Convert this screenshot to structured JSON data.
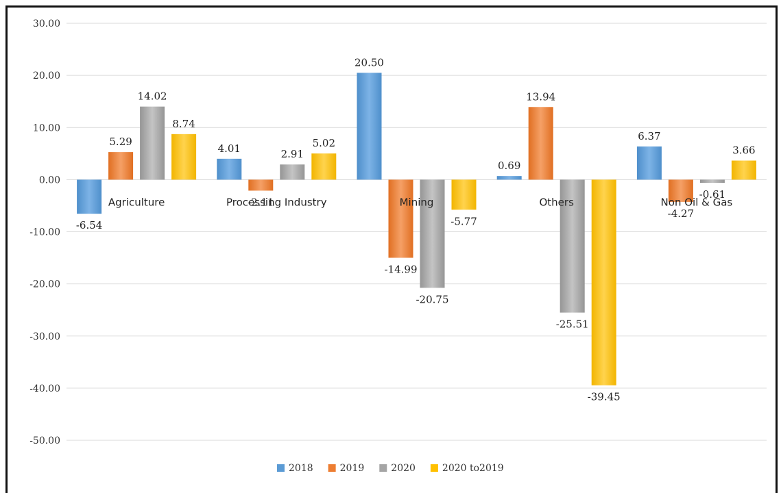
{
  "chart_data": {
    "type": "bar",
    "categories": [
      "Agriculture",
      "Processing Industry",
      "Mining",
      "Others",
      "Non Oil & Gas"
    ],
    "series": [
      {
        "name": "2018",
        "color": "#5B9BD5",
        "values": [
          -6.54,
          4.01,
          20.5,
          0.69,
          6.37
        ],
        "labels": [
          "-6.54",
          "4.01",
          "20.50",
          "0.69",
          "6.37"
        ]
      },
      {
        "name": "2019",
        "color": "#ED7D31",
        "values": [
          5.29,
          -2.11,
          -14.99,
          13.94,
          -4.27
        ],
        "labels": [
          "5.29",
          "-2.11",
          "-14.99",
          "13.94",
          "-4.27"
        ]
      },
      {
        "name": "2020",
        "color": "#A5A5A5",
        "values": [
          14.02,
          2.91,
          -20.75,
          -25.51,
          -0.61
        ],
        "labels": [
          "14.02",
          "2.91",
          "-20.75",
          "-25.51",
          "-0.61"
        ]
      },
      {
        "name": "2020 to2019",
        "color": "#FFC000",
        "values": [
          8.74,
          5.02,
          -5.77,
          -39.45,
          3.66
        ],
        "labels": [
          "8.74",
          "5.02",
          "-5.77",
          "-39.45",
          "3.66"
        ]
      }
    ],
    "yticks": [
      "30.00",
      "20.00",
      "10.00",
      "0.00",
      "-10.00",
      "-20.00",
      "-30.00",
      "-40.00",
      "-50.00"
    ],
    "ylim": [
      -50,
      30
    ],
    "grid": true,
    "legend": "bottom",
    "title": "",
    "xlabel": "",
    "ylabel": ""
  }
}
